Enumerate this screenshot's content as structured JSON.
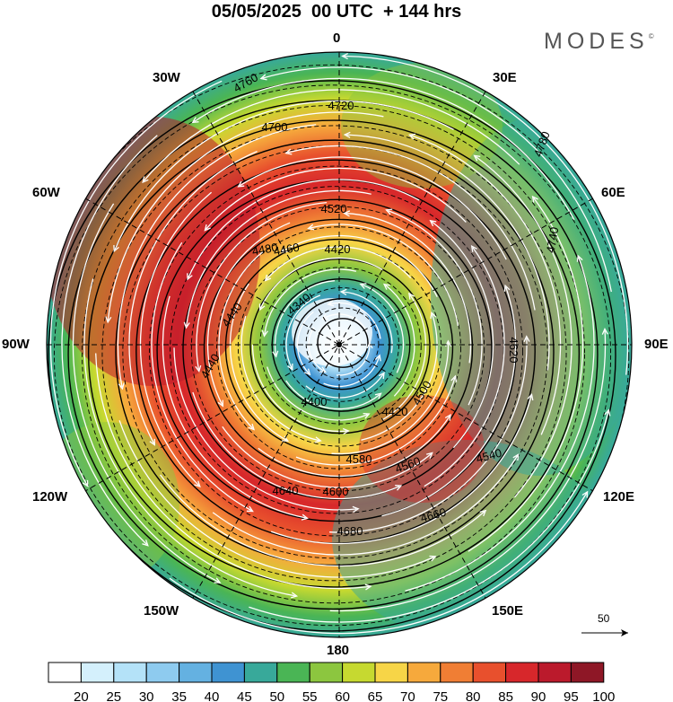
{
  "title": "05/05/2025  00 UTC  + 144 hrs",
  "brand": "MODES",
  "brand_mark": "©",
  "longitude_labels": {
    "north": "0",
    "n30e": "30E",
    "n60e": "60E",
    "east": "90E",
    "s120e": "120E",
    "s150e": "150E",
    "south": "180",
    "s150w": "150W",
    "s120w": "120W",
    "west": "90W",
    "n60w": "60W",
    "n30w": "30W"
  },
  "reference_vector": {
    "value": "50"
  },
  "colorbar": {
    "ticks": [
      "20",
      "25",
      "30",
      "35",
      "40",
      "45",
      "50",
      "55",
      "60",
      "65",
      "70",
      "75",
      "80",
      "85",
      "90",
      "95",
      "100"
    ],
    "colors": [
      "#ffffff",
      "#d4f0fc",
      "#b4e2f8",
      "#8ecbef",
      "#64b1e1",
      "#3f93d2",
      "#38a99a",
      "#4ab555",
      "#8cc63f",
      "#c6d930",
      "#f7d547",
      "#f6a93c",
      "#f07e34",
      "#e8502d",
      "#d7272b",
      "#bb1a2c",
      "#8e1726"
    ]
  },
  "contour_labels": [
    "4340",
    "4400",
    "4420",
    "4440",
    "4460",
    "4480",
    "4500",
    "4520",
    "4540",
    "4560",
    "4580",
    "4600",
    "4620",
    "4640",
    "4660",
    "4680",
    "4700",
    "4720",
    "4740",
    "4760",
    "4780",
    "4420",
    "4440"
  ]
}
